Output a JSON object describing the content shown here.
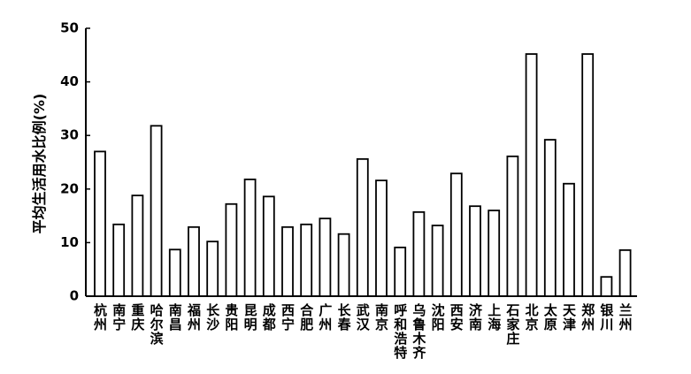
{
  "chart_data": {
    "type": "bar",
    "ylabel": "平均生活用水比例(%)",
    "categories": [
      "杭州",
      "南宁",
      "重庆",
      "哈尔滨",
      "南昌",
      "福州",
      "长沙",
      "贵阳",
      "昆明",
      "成都",
      "西宁",
      "合肥",
      "广州",
      "长春",
      "武汉",
      "南京",
      "呼和浩特",
      "乌鲁木齐",
      "沈阳",
      "西安",
      "济南",
      "上海",
      "石家庄",
      "北京",
      "太原",
      "天津",
      "郑州",
      "银川",
      "兰州"
    ],
    "values": [
      27,
      13.4,
      18.8,
      31.8,
      8.7,
      12.9,
      10.2,
      17.2,
      21.8,
      18.6,
      12.9,
      13.4,
      14.5,
      11.6,
      25.6,
      21.6,
      9.1,
      15.7,
      13.2,
      22.9,
      16.8,
      16,
      26.1,
      45.2,
      29.2,
      21,
      45.2,
      3.6,
      8.6
    ],
    "color": "#ffffff",
    "ylim": [
      0,
      50
    ],
    "yticks": [
      0,
      10,
      20,
      30,
      40,
      50
    ],
    "grid": false
  }
}
